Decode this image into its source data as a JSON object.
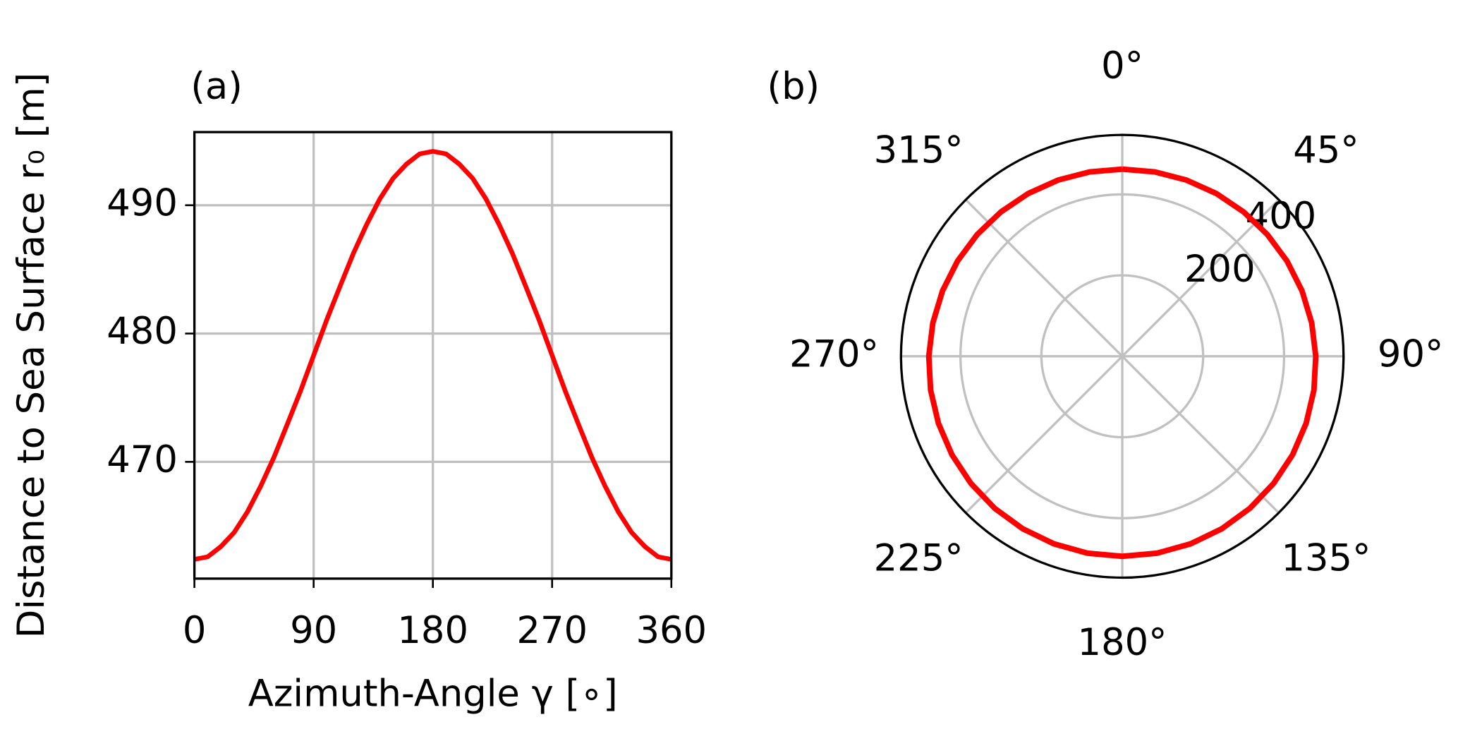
{
  "chart_data": [
    {
      "type": "line",
      "panel_label": "(a)",
      "x_label": "Azimuth-Angle γ [∘]",
      "y_label": "Distance to Sea Surface r₀ [m]",
      "x": [
        0,
        10,
        20,
        30,
        40,
        50,
        60,
        70,
        80,
        90,
        100,
        110,
        120,
        130,
        140,
        150,
        160,
        170,
        180,
        190,
        200,
        210,
        220,
        230,
        240,
        250,
        260,
        270,
        280,
        290,
        300,
        310,
        320,
        330,
        340,
        350,
        360
      ],
      "series": [
        {
          "name": "r0",
          "color": "#ff0000",
          "values": [
            462.4,
            462.6,
            463.4,
            464.5,
            466.1,
            468.1,
            470.35,
            472.9,
            475.5,
            478.3,
            481.1,
            483.7,
            486.25,
            488.5,
            490.5,
            492.1,
            493.2,
            494.0,
            494.2,
            494.0,
            493.2,
            492.1,
            490.5,
            488.5,
            486.25,
            483.7,
            481.1,
            478.3,
            475.5,
            472.9,
            470.35,
            468.1,
            466.1,
            464.5,
            463.4,
            462.6,
            462.4
          ]
        }
      ],
      "xlim": [
        0,
        360
      ],
      "xticks": [
        0,
        90,
        180,
        270,
        360
      ],
      "ylim": [
        460.9,
        495.7
      ],
      "yticks": [
        470,
        480,
        490
      ],
      "grid": true
    },
    {
      "type": "polar",
      "panel_label": "(b)",
      "theta_direction": "clockwise",
      "theta_zero": "top",
      "x": [
        0,
        10,
        20,
        30,
        40,
        50,
        60,
        70,
        80,
        90,
        100,
        110,
        120,
        130,
        140,
        150,
        160,
        170,
        180,
        190,
        200,
        210,
        220,
        230,
        240,
        250,
        260,
        270,
        280,
        290,
        300,
        310,
        320,
        330,
        340,
        350,
        360
      ],
      "series": [
        {
          "name": "r0",
          "color": "#ff0000",
          "values": [
            462.4,
            462.6,
            463.4,
            464.5,
            466.1,
            468.1,
            470.35,
            472.9,
            475.5,
            478.3,
            481.1,
            483.7,
            486.25,
            488.5,
            490.5,
            492.1,
            493.2,
            494.0,
            494.2,
            494.0,
            493.2,
            492.1,
            490.5,
            488.5,
            486.25,
            483.7,
            481.1,
            478.3,
            475.5,
            472.9,
            470.35,
            468.1,
            466.1,
            464.5,
            463.4,
            462.6,
            462.4
          ]
        }
      ],
      "xticks": [
        {
          "value": 0,
          "label": "0°"
        },
        {
          "value": 45,
          "label": "45°"
        },
        {
          "value": 90,
          "label": "90°"
        },
        {
          "value": 135,
          "label": "135°"
        },
        {
          "value": 180,
          "label": "180°"
        },
        {
          "value": 225,
          "label": "225°"
        },
        {
          "value": 270,
          "label": "270°"
        },
        {
          "value": 315,
          "label": "315°"
        }
      ],
      "ylim": [
        0,
        547
      ],
      "yticks": [
        200,
        400
      ],
      "grid": true
    }
  ]
}
